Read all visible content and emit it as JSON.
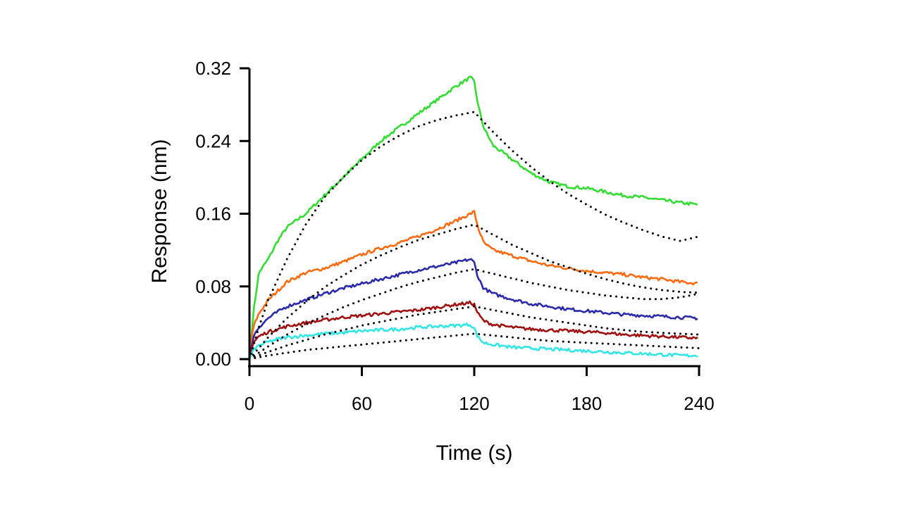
{
  "chart_data": {
    "type": "line",
    "title": "",
    "xlabel": "Time (s)",
    "ylabel": "Response (nm)",
    "xlim": [
      0,
      240
    ],
    "ylim": [
      0,
      0.32
    ],
    "x_ticks": [
      "0",
      "60",
      "120",
      "180",
      "240"
    ],
    "y_ticks": [
      "0.00",
      "0.08",
      "0.16",
      "0.24",
      "0.32"
    ],
    "grid": false,
    "legend": "none",
    "association_end": 120,
    "measured_series": [
      {
        "color": "#33dd33",
        "x": [
          0,
          2,
          5,
          10,
          15,
          20,
          30,
          40,
          50,
          60,
          70,
          80,
          90,
          100,
          110,
          118,
          120,
          122,
          125,
          130,
          140,
          150,
          160,
          170,
          180,
          190,
          200,
          210,
          220,
          230,
          240
        ],
        "y": [
          0.0,
          0.05,
          0.095,
          0.11,
          0.13,
          0.145,
          0.16,
          0.18,
          0.2,
          0.22,
          0.24,
          0.255,
          0.27,
          0.285,
          0.3,
          0.31,
          0.305,
          0.28,
          0.255,
          0.235,
          0.22,
          0.205,
          0.195,
          0.19,
          0.188,
          0.184,
          0.18,
          0.178,
          0.175,
          0.172,
          0.17
        ]
      },
      {
        "color": "#ff6a10",
        "x": [
          0,
          2,
          5,
          10,
          15,
          20,
          30,
          40,
          50,
          60,
          70,
          80,
          90,
          100,
          110,
          118,
          120,
          122,
          125,
          130,
          140,
          150,
          160,
          170,
          180,
          190,
          200,
          210,
          220,
          230,
          240
        ],
        "y": [
          0.0,
          0.035,
          0.05,
          0.065,
          0.075,
          0.085,
          0.095,
          0.1,
          0.107,
          0.115,
          0.122,
          0.128,
          0.135,
          0.143,
          0.152,
          0.16,
          0.162,
          0.145,
          0.128,
          0.12,
          0.114,
          0.108,
          0.103,
          0.1,
          0.097,
          0.095,
          0.093,
          0.09,
          0.088,
          0.085,
          0.083
        ]
      },
      {
        "color": "#2a2aaa",
        "x": [
          0,
          2,
          5,
          10,
          15,
          20,
          30,
          40,
          50,
          60,
          70,
          80,
          90,
          100,
          110,
          118,
          120,
          122,
          125,
          130,
          140,
          150,
          160,
          170,
          180,
          190,
          200,
          210,
          220,
          230,
          240
        ],
        "y": [
          0.0,
          0.025,
          0.035,
          0.045,
          0.052,
          0.058,
          0.065,
          0.072,
          0.078,
          0.083,
          0.088,
          0.093,
          0.098,
          0.102,
          0.106,
          0.11,
          0.106,
          0.09,
          0.078,
          0.072,
          0.066,
          0.061,
          0.058,
          0.055,
          0.053,
          0.051,
          0.049,
          0.048,
          0.047,
          0.046,
          0.045
        ]
      },
      {
        "color": "#a01010",
        "x": [
          0,
          2,
          5,
          10,
          15,
          20,
          30,
          40,
          50,
          60,
          70,
          80,
          90,
          100,
          110,
          118,
          120,
          122,
          125,
          130,
          140,
          150,
          160,
          170,
          180,
          190,
          200,
          210,
          220,
          230,
          240
        ],
        "y": [
          0.0,
          0.018,
          0.025,
          0.03,
          0.033,
          0.036,
          0.04,
          0.043,
          0.046,
          0.048,
          0.05,
          0.052,
          0.054,
          0.057,
          0.06,
          0.062,
          0.06,
          0.05,
          0.042,
          0.038,
          0.035,
          0.033,
          0.032,
          0.031,
          0.03,
          0.029,
          0.027,
          0.026,
          0.025,
          0.024,
          0.023
        ]
      },
      {
        "color": "#33e5e5",
        "x": [
          0,
          2,
          5,
          10,
          15,
          20,
          30,
          40,
          50,
          60,
          70,
          80,
          90,
          100,
          110,
          118,
          120,
          122,
          125,
          130,
          140,
          150,
          160,
          170,
          180,
          190,
          200,
          210,
          220,
          230,
          240
        ],
        "y": [
          0.0,
          0.01,
          0.015,
          0.019,
          0.022,
          0.024,
          0.026,
          0.028,
          0.029,
          0.031,
          0.032,
          0.033,
          0.035,
          0.036,
          0.037,
          0.038,
          0.034,
          0.024,
          0.018,
          0.016,
          0.013,
          0.012,
          0.011,
          0.01,
          0.009,
          0.008,
          0.007,
          0.006,
          0.005,
          0.004,
          0.004
        ]
      }
    ],
    "fit_series": [
      {
        "color": "#000000",
        "x": [
          0,
          5,
          10,
          20,
          30,
          40,
          50,
          60,
          70,
          80,
          90,
          100,
          110,
          120,
          130,
          140,
          150,
          160,
          170,
          180,
          190,
          200,
          210,
          220,
          230,
          240
        ],
        "y": [
          0.0,
          0.035,
          0.065,
          0.11,
          0.148,
          0.178,
          0.2,
          0.219,
          0.234,
          0.246,
          0.256,
          0.263,
          0.268,
          0.272,
          0.25,
          0.23,
          0.212,
          0.196,
          0.182,
          0.17,
          0.159,
          0.15,
          0.142,
          0.135,
          0.13,
          0.135
        ]
      },
      {
        "color": "#000000",
        "x": [
          0,
          5,
          10,
          20,
          30,
          40,
          50,
          60,
          70,
          80,
          90,
          100,
          110,
          120,
          130,
          140,
          150,
          160,
          170,
          180,
          190,
          200,
          210,
          220,
          230,
          240
        ],
        "y": [
          0.0,
          0.012,
          0.024,
          0.045,
          0.063,
          0.079,
          0.092,
          0.104,
          0.114,
          0.123,
          0.131,
          0.137,
          0.143,
          0.148,
          0.137,
          0.126,
          0.117,
          0.108,
          0.101,
          0.094,
          0.088,
          0.083,
          0.079,
          0.076,
          0.074,
          0.073
        ]
      },
      {
        "color": "#000000",
        "x": [
          0,
          10,
          20,
          30,
          40,
          50,
          60,
          70,
          80,
          90,
          100,
          110,
          120,
          130,
          140,
          150,
          160,
          170,
          180,
          190,
          200,
          210,
          220,
          230,
          240
        ],
        "y": [
          0.0,
          0.014,
          0.027,
          0.038,
          0.048,
          0.057,
          0.065,
          0.072,
          0.079,
          0.085,
          0.09,
          0.095,
          0.099,
          0.094,
          0.089,
          0.084,
          0.08,
          0.076,
          0.073,
          0.07,
          0.068,
          0.066,
          0.066,
          0.068,
          0.072
        ]
      },
      {
        "color": "#000000",
        "x": [
          0,
          10,
          20,
          30,
          40,
          50,
          60,
          70,
          80,
          90,
          100,
          110,
          120,
          130,
          140,
          150,
          160,
          170,
          180,
          190,
          200,
          210,
          220,
          230,
          240
        ],
        "y": [
          0.0,
          0.008,
          0.015,
          0.021,
          0.027,
          0.032,
          0.037,
          0.041,
          0.045,
          0.049,
          0.052,
          0.055,
          0.058,
          0.054,
          0.05,
          0.046,
          0.043,
          0.04,
          0.037,
          0.034,
          0.032,
          0.03,
          0.029,
          0.028,
          0.027
        ]
      },
      {
        "color": "#000000",
        "x": [
          0,
          10,
          20,
          30,
          40,
          50,
          60,
          70,
          80,
          90,
          100,
          110,
          120,
          130,
          140,
          150,
          160,
          170,
          180,
          190,
          200,
          210,
          220,
          230,
          240
        ],
        "y": [
          0.0,
          0.004,
          0.007,
          0.01,
          0.012,
          0.014,
          0.016,
          0.018,
          0.02,
          0.022,
          0.024,
          0.026,
          0.028,
          0.026,
          0.024,
          0.022,
          0.02,
          0.019,
          0.018,
          0.017,
          0.016,
          0.015,
          0.014,
          0.013,
          0.012
        ]
      }
    ]
  }
}
